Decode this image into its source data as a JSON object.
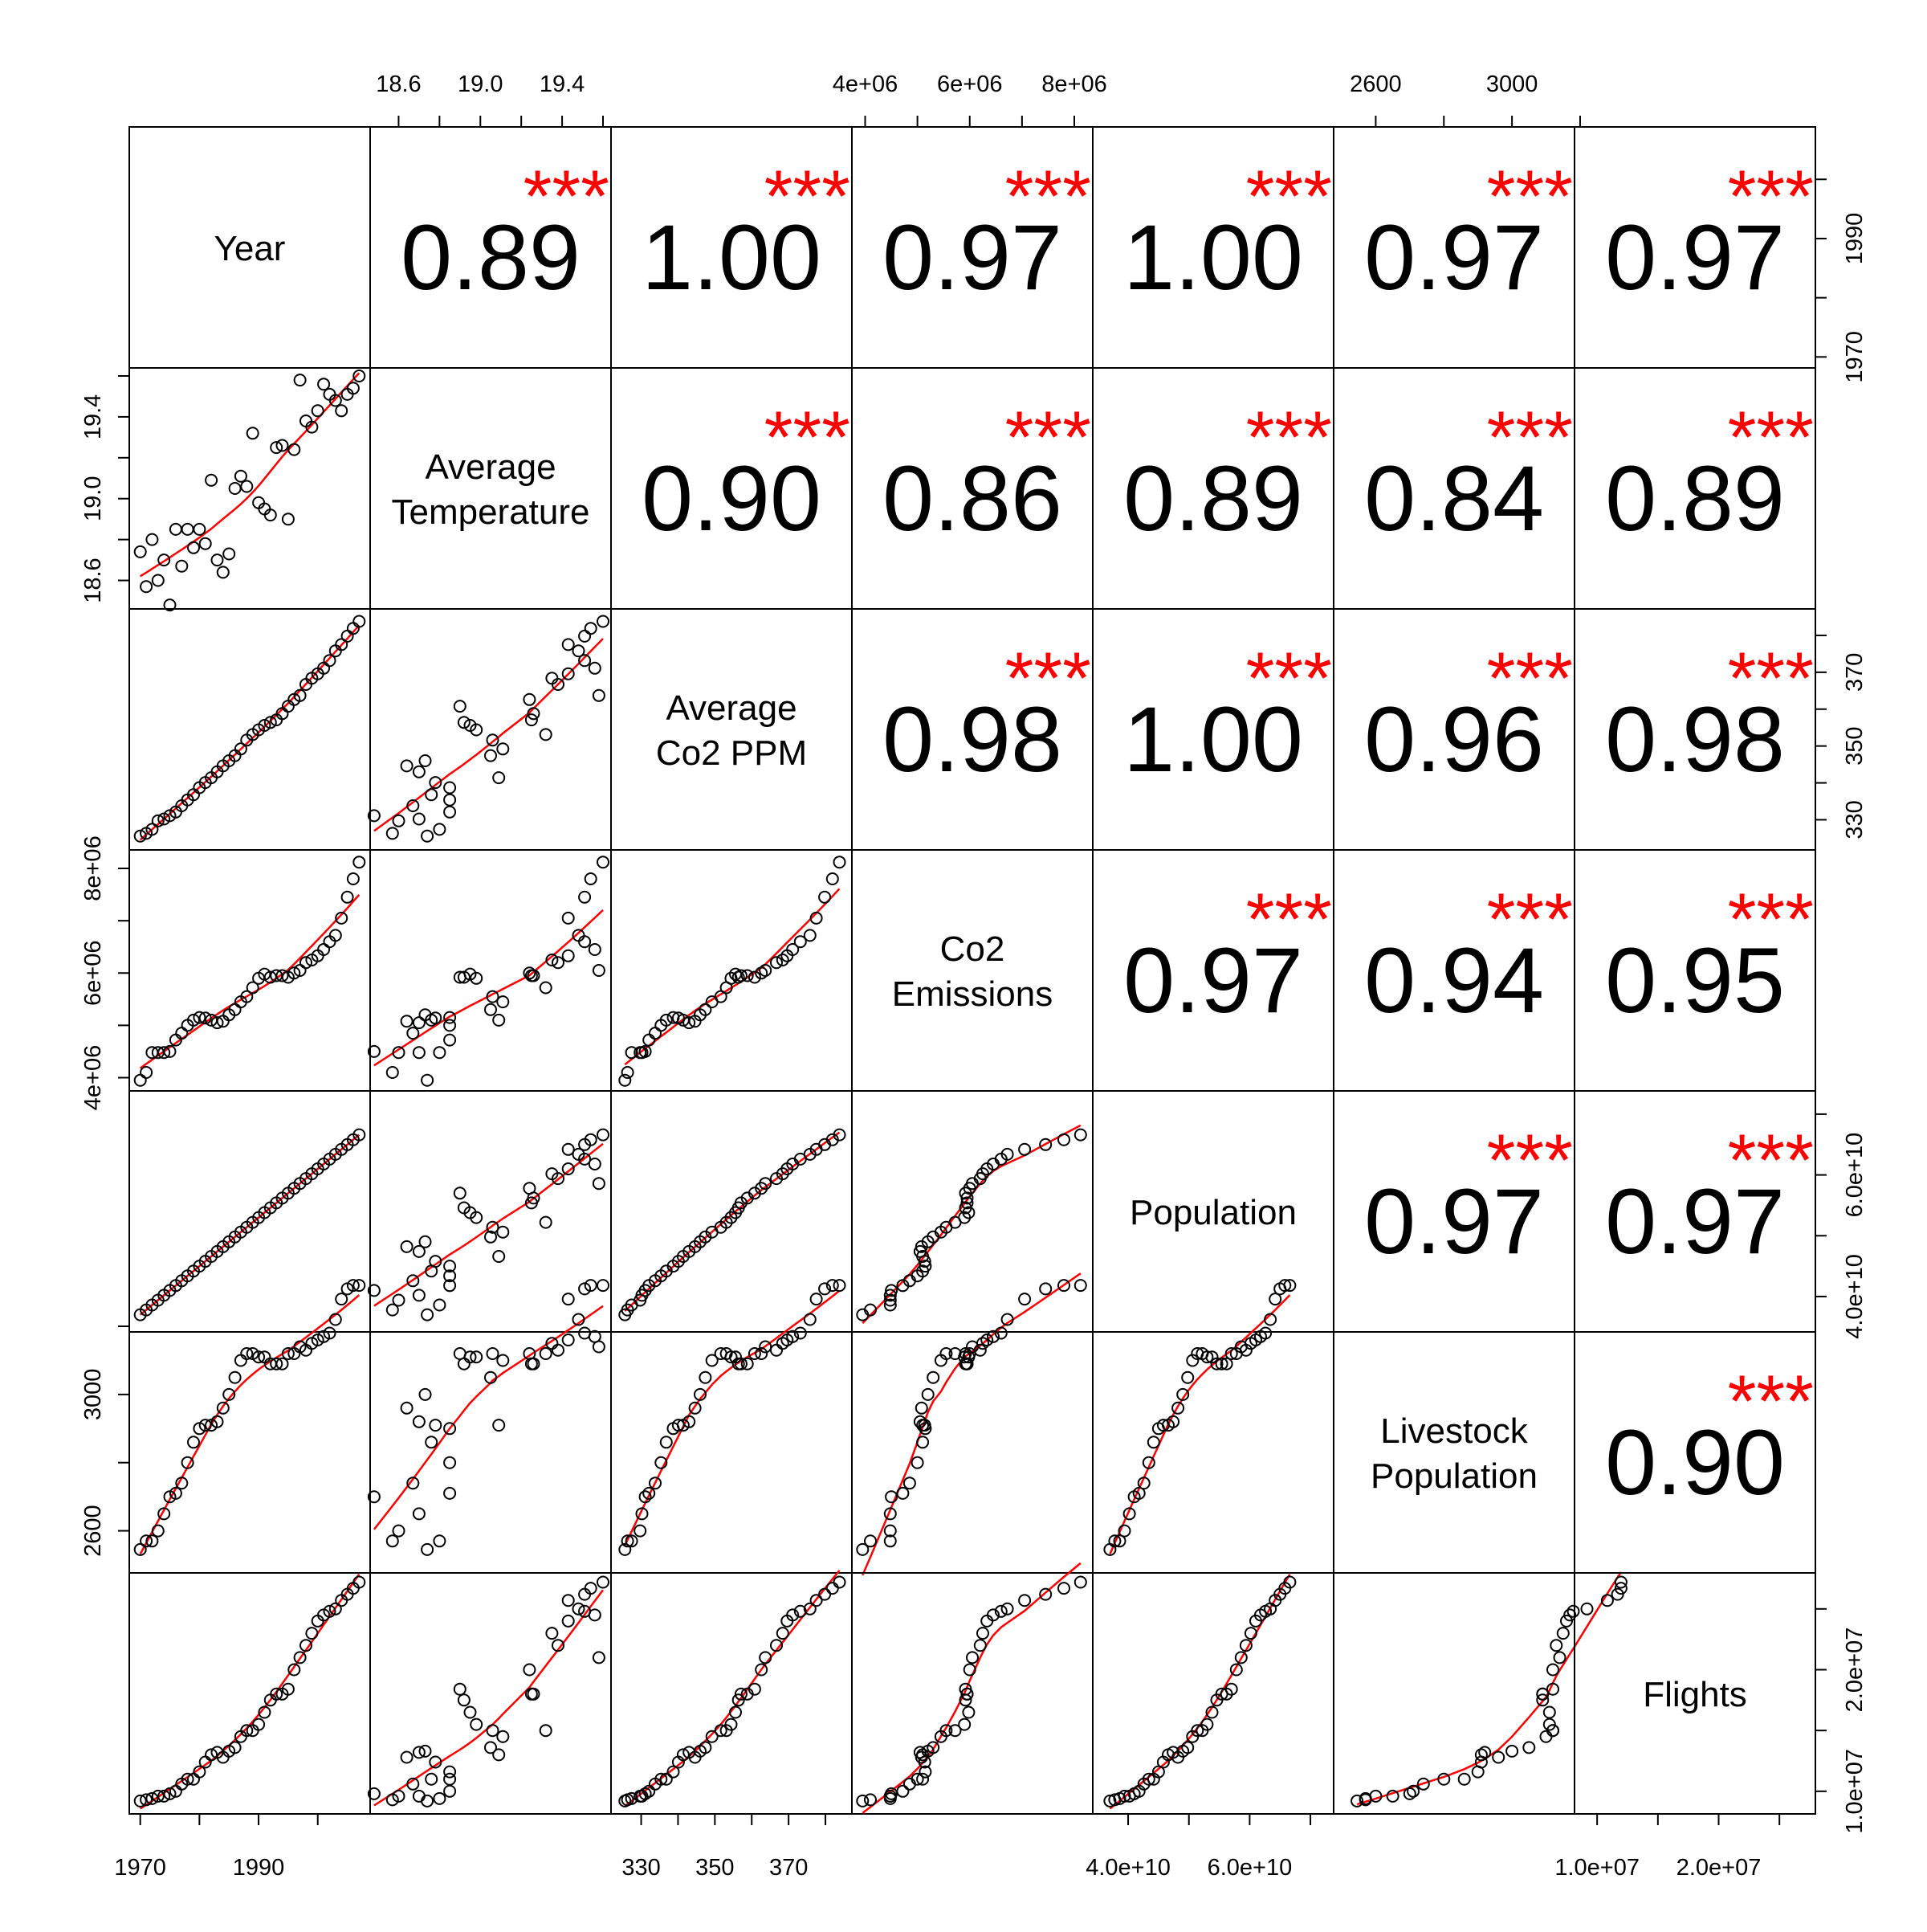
{
  "chart_data": {
    "type": "scatter-matrix",
    "variables": [
      {
        "key": "year",
        "label_lines": [
          "Year"
        ]
      },
      {
        "key": "temp",
        "label_lines": [
          "Average",
          "Temperature"
        ]
      },
      {
        "key": "co2ppm",
        "label_lines": [
          "Average",
          "Co2 PPM"
        ]
      },
      {
        "key": "co2em",
        "label_lines": [
          "Co2",
          "Emissions"
        ]
      },
      {
        "key": "pop",
        "label_lines": [
          "Population"
        ]
      },
      {
        "key": "livestock",
        "label_lines": [
          "Livestock",
          "Population"
        ]
      },
      {
        "key": "flights",
        "label_lines": [
          "Flights"
        ]
      }
    ],
    "axes": {
      "year": {
        "range": [
          1969.5,
          2007.5
        ],
        "ticks": [
          1970,
          1980,
          1990,
          2000
        ],
        "tick_labels": [
          "1970",
          "",
          "1990",
          ""
        ]
      },
      "temp": {
        "range": [
          18.5,
          19.6
        ],
        "ticks": [
          18.6,
          18.8,
          19.0,
          19.2,
          19.4,
          19.6
        ],
        "tick_labels": [
          "18.6",
          "",
          "19.0",
          "",
          "19.4",
          ""
        ]
      },
      "co2ppm": {
        "range": [
          324,
          385
        ],
        "ticks": [
          330,
          340,
          350,
          360,
          370,
          380
        ],
        "tick_labels": [
          "330",
          "",
          "350",
          "",
          "370",
          ""
        ]
      },
      "co2em": {
        "range": [
          3900000.0,
          8200000.0
        ],
        "ticks": [
          4000000.0,
          5000000.0,
          6000000.0,
          7000000.0,
          8000000.0
        ],
        "tick_labels": [
          "4e+06",
          "",
          "6e+06",
          "",
          "8e+06"
        ]
      },
      "pop": {
        "range": [
          35500000000.0,
          72500000000.0
        ],
        "ticks": [
          40000000000.0,
          50000000000.0,
          60000000000.0,
          70000000000.0
        ],
        "tick_labels": [
          "4.0e+10",
          "",
          "6.0e+10",
          ""
        ]
      },
      "livestock": {
        "range": [
          2500,
          3160
        ],
        "ticks": [
          2600,
          2800,
          3000,
          3200
        ],
        "tick_labels": [
          "2600",
          "",
          "3000",
          ""
        ]
      },
      "flights": {
        "range": [
          8800000.0,
          27300000.0
        ],
        "ticks": [
          10000000.0,
          15000000.0,
          20000000.0,
          25000000.0
        ],
        "tick_labels": [
          "1.0e+07",
          "",
          "2.0e+07",
          ""
        ]
      }
    },
    "tick_placement": {
      "top": [
        "temp",
        "co2em",
        "livestock"
      ],
      "bottom": [
        "year",
        "co2ppm",
        "pop",
        "flights"
      ],
      "left": [
        "temp",
        "co2em",
        "livestock"
      ],
      "right": [
        "year",
        "co2ppm",
        "pop",
        "flights"
      ]
    },
    "correlations": [
      {
        "row": 0,
        "col": 1,
        "value": "0.89",
        "stars": "***"
      },
      {
        "row": 0,
        "col": 2,
        "value": "1.00",
        "stars": "***"
      },
      {
        "row": 0,
        "col": 3,
        "value": "0.97",
        "stars": "***"
      },
      {
        "row": 0,
        "col": 4,
        "value": "1.00",
        "stars": "***"
      },
      {
        "row": 0,
        "col": 5,
        "value": "0.97",
        "stars": "***"
      },
      {
        "row": 0,
        "col": 6,
        "value": "0.97",
        "stars": "***"
      },
      {
        "row": 1,
        "col": 2,
        "value": "0.90",
        "stars": "***"
      },
      {
        "row": 1,
        "col": 3,
        "value": "0.86",
        "stars": "***"
      },
      {
        "row": 1,
        "col": 4,
        "value": "0.89",
        "stars": "***"
      },
      {
        "row": 1,
        "col": 5,
        "value": "0.84",
        "stars": "***"
      },
      {
        "row": 1,
        "col": 6,
        "value": "0.89",
        "stars": "***"
      },
      {
        "row": 2,
        "col": 3,
        "value": "0.98",
        "stars": "***"
      },
      {
        "row": 2,
        "col": 4,
        "value": "1.00",
        "stars": "***"
      },
      {
        "row": 2,
        "col": 5,
        "value": "0.96",
        "stars": "***"
      },
      {
        "row": 2,
        "col": 6,
        "value": "0.98",
        "stars": "***"
      },
      {
        "row": 3,
        "col": 4,
        "value": "0.97",
        "stars": "***"
      },
      {
        "row": 3,
        "col": 5,
        "value": "0.94",
        "stars": "***"
      },
      {
        "row": 3,
        "col": 6,
        "value": "0.95",
        "stars": "***"
      },
      {
        "row": 4,
        "col": 5,
        "value": "0.97",
        "stars": "***"
      },
      {
        "row": 4,
        "col": 6,
        "value": "0.97",
        "stars": "***"
      },
      {
        "row": 5,
        "col": 6,
        "value": "0.90",
        "stars": "***"
      }
    ],
    "observations": {
      "year": [
        1970,
        1971,
        1972,
        1973,
        1974,
        1975,
        1976,
        1977,
        1978,
        1979,
        1980,
        1981,
        1982,
        1983,
        1984,
        1985,
        1986,
        1987,
        1988,
        1989,
        1990,
        1991,
        1992,
        1993,
        1994,
        1995,
        1996,
        1997,
        1998,
        1999,
        2000,
        2001,
        2002,
        2003,
        2004,
        2005,
        2006,
        2007
      ],
      "temp": [
        18.74,
        18.57,
        18.8,
        18.6,
        18.7,
        18.48,
        18.85,
        18.67,
        18.85,
        18.76,
        18.85,
        18.78,
        19.09,
        18.7,
        18.64,
        18.73,
        19.05,
        19.11,
        19.06,
        19.32,
        18.98,
        18.95,
        18.92,
        19.25,
        19.26,
        18.9,
        19.24,
        19.58,
        19.38,
        19.35,
        19.43,
        19.56,
        19.51,
        19.48,
        19.43,
        19.51,
        19.54,
        19.6
      ],
      "co2ppm": [
        325.6,
        326.3,
        327.4,
        329.7,
        330.2,
        331.1,
        332.1,
        333.8,
        335.4,
        336.8,
        338.7,
        340.1,
        341.4,
        343.0,
        344.6,
        346.0,
        347.4,
        349.2,
        351.6,
        353.1,
        354.4,
        355.6,
        356.4,
        357.1,
        358.8,
        360.8,
        362.6,
        363.7,
        366.7,
        368.4,
        369.6,
        371.1,
        373.2,
        375.8,
        377.5,
        379.8,
        381.9,
        383.8
      ],
      "co2em": [
        3950000.0,
        4100000.0,
        4480000.0,
        4480000.0,
        4480000.0,
        4500000.0,
        4720000.0,
        4850000.0,
        5000000.0,
        5100000.0,
        5150000.0,
        5140000.0,
        5100000.0,
        5050000.0,
        5080000.0,
        5200000.0,
        5300000.0,
        5450000.0,
        5550000.0,
        5720000.0,
        5900000.0,
        5980000.0,
        5920000.0,
        5950000.0,
        5950000.0,
        5920000.0,
        6000000.0,
        6050000.0,
        6200000.0,
        6250000.0,
        6330000.0,
        6450000.0,
        6600000.0,
        6720000.0,
        7050000.0,
        7450000.0,
        7800000.0,
        8120000.0
      ],
      "pop": [
        37000000000.0,
        37800000000.0,
        38600000000.0,
        39400000000.0,
        40200000000.0,
        41000000000.0,
        41800000000.0,
        42600000000.0,
        43400000000.0,
        44200000000.0,
        45000000000.0,
        45800000000.0,
        46600000000.0,
        47400000000.0,
        48200000000.0,
        49000000000.0,
        49800000000.0,
        50600000000.0,
        51400000000.0,
        52200000000.0,
        53000000000.0,
        53800000000.0,
        54600000000.0,
        55400000000.0,
        56200000000.0,
        57000000000.0,
        57800000000.0,
        58600000000.0,
        59400000000.0,
        60200000000.0,
        61000000000.0,
        61800000000.0,
        62600000000.0,
        63400000000.0,
        64200000000.0,
        65000000000.0,
        65800000000.0,
        66600000000.0
      ],
      "livestock": [
        2545,
        2570,
        2570,
        2600,
        2650,
        2700,
        2710,
        2740,
        2800,
        2860,
        2900,
        2910,
        2910,
        2920,
        2960,
        3000,
        3050,
        3100,
        3120,
        3120,
        3110,
        3110,
        3090,
        3090,
        3090,
        3120,
        3120,
        3140,
        3130,
        3150,
        3160,
        3170,
        3180,
        3220,
        3280,
        3310,
        3320,
        3320
      ],
      "flights": [
        9200000.0,
        9300000.0,
        9400000.0,
        9600000.0,
        9600000.0,
        9800000.0,
        10000000.0,
        10600000.0,
        11000000.0,
        11000000.0,
        11600000.0,
        12400000.0,
        13000000.0,
        13200000.0,
        12800000.0,
        13300000.0,
        13600000.0,
        14500000.0,
        15000000.0,
        15000000.0,
        15500000.0,
        16500000.0,
        17500000.0,
        18000000.0,
        18000000.0,
        18400000.0,
        20000000.0,
        21000000.0,
        22000000.0,
        23000000.0,
        24000000.0,
        24500000.0,
        24800000.0,
        25000000.0,
        25700000.0,
        26200000.0,
        26700000.0,
        27200000.0
      ]
    },
    "colors": {
      "points": "#000000",
      "smooth_line": "#ff0000",
      "stars": "#ff0000",
      "text": "#000000",
      "frame": "#000000"
    }
  }
}
